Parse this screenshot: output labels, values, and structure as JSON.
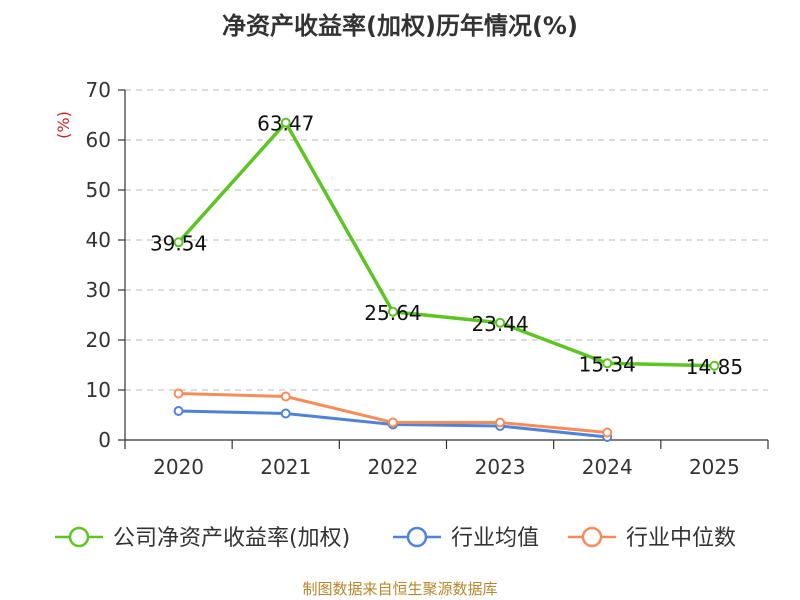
{
  "chart_data": {
    "type": "line",
    "title": "净资产收益率(加权)历年情况(%)",
    "ylabel": "(%)",
    "xlabel": "",
    "categories": [
      "2020",
      "2021",
      "2022",
      "2023",
      "2024",
      "2025"
    ],
    "ylim": [
      0,
      70
    ],
    "yticks": [
      0,
      10,
      20,
      30,
      40,
      50,
      60,
      70
    ],
    "grid": true,
    "legend_position": "bottom",
    "series": [
      {
        "name": "公司净资产收益率(加权)",
        "color": "#5cc524",
        "values": [
          39.54,
          63.47,
          25.64,
          23.44,
          15.34,
          14.85
        ],
        "data_labels": [
          "39.54",
          "63.47",
          "25.64",
          "23.44",
          "15.34",
          "14.85"
        ]
      },
      {
        "name": "行业均值",
        "color": "#4f83d9",
        "values": [
          5.8,
          5.3,
          3.1,
          2.8,
          0.6,
          null
        ]
      },
      {
        "name": "行业中位数",
        "color": "#f58d5b",
        "values": [
          9.3,
          8.7,
          3.5,
          3.5,
          1.5,
          null
        ]
      }
    ]
  },
  "footer": {
    "source": "制图数据来自恒生聚源数据库"
  }
}
